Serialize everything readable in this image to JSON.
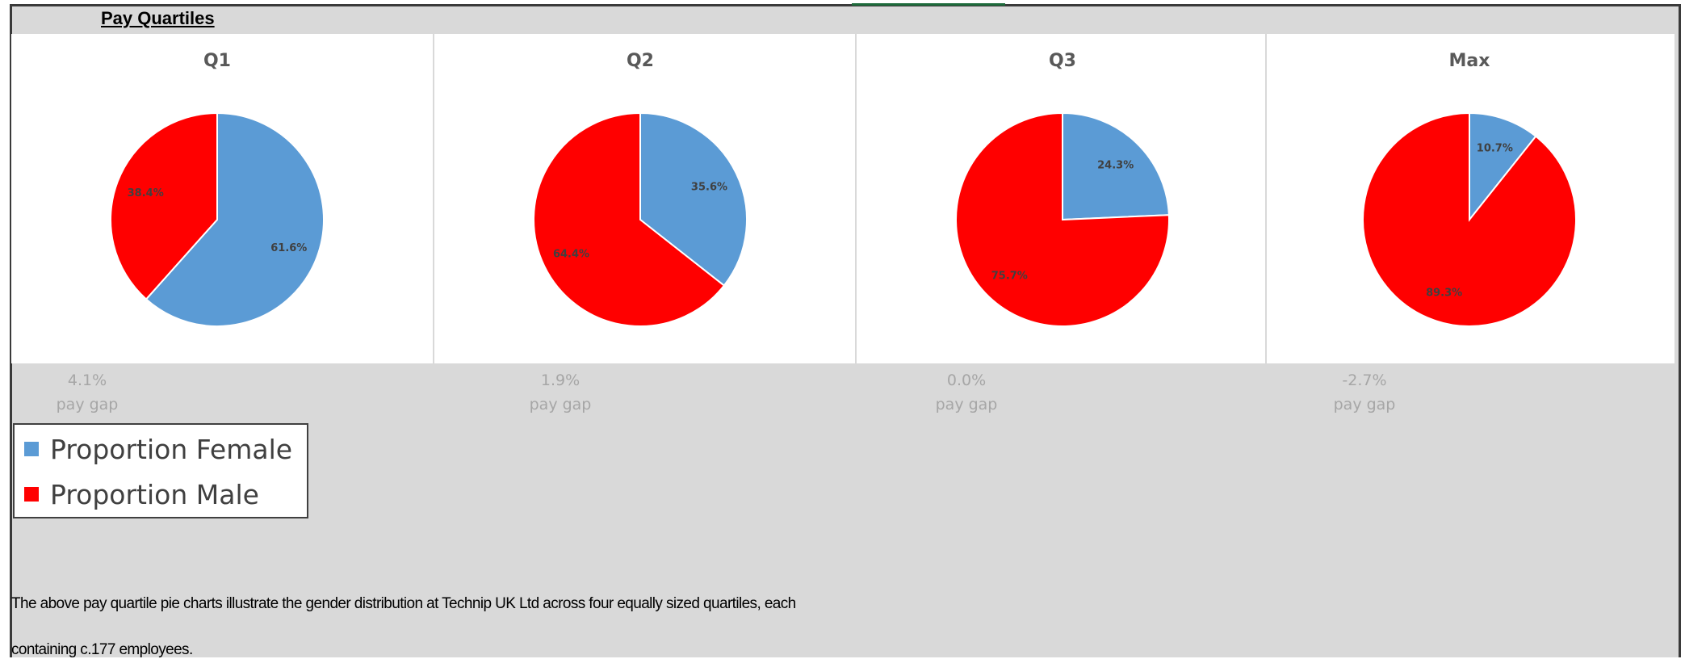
{
  "section_title": "Pay Quartiles",
  "colors": {
    "female": "#5b9bd5",
    "male": "#ff0000"
  },
  "legend": {
    "female_label": "Proportion Female",
    "male_label": "Proportion Male"
  },
  "chart_data": [
    {
      "type": "pie",
      "title": "Q1",
      "labels": [
        "Proportion Female",
        "Proportion Male"
      ],
      "values": [
        61.6,
        38.4
      ],
      "data_labels": [
        "61.6%",
        "38.4%"
      ]
    },
    {
      "type": "pie",
      "title": "Q2",
      "labels": [
        "Proportion Female",
        "Proportion Male"
      ],
      "values": [
        35.6,
        64.4
      ],
      "data_labels": [
        "35.6%",
        "64.4%"
      ]
    },
    {
      "type": "pie",
      "title": "Q3",
      "labels": [
        "Proportion Female",
        "Proportion Male"
      ],
      "values": [
        24.3,
        75.7
      ],
      "data_labels": [
        "24.3%",
        "75.7%"
      ]
    },
    {
      "type": "pie",
      "title": "Max",
      "labels": [
        "Proportion Female",
        "Proportion Male"
      ],
      "values": [
        10.7,
        89.3
      ],
      "data_labels": [
        "10.7%",
        "89.3%"
      ]
    }
  ],
  "pay_gaps": [
    {
      "value": "4.1%",
      "label": "pay gap"
    },
    {
      "value": "1.9%",
      "label": "pay gap"
    },
    {
      "value": "0.0%",
      "label": "pay gap"
    },
    {
      "value": "-2.7%",
      "label": "pay gap"
    }
  ],
  "footer": {
    "line1": "The above pay quartile pie charts illustrate the gender distribution at Technip UK Ltd across four equally sized quartiles, each",
    "line2": "containing c.177   employees."
  }
}
